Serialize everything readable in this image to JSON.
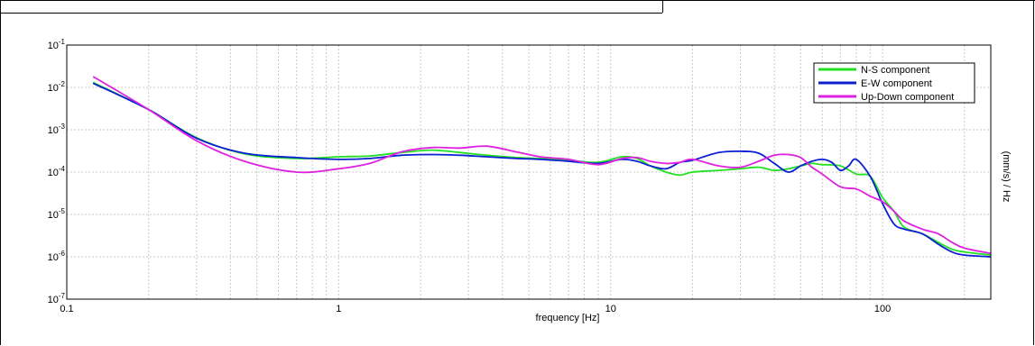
{
  "chart_data": {
    "type": "line",
    "xlabel": "frequency [Hz]",
    "ylabel": "(mm/s)  / Hz",
    "xscale": "log",
    "yscale": "log",
    "xlim": [
      0.1,
      250
    ],
    "ylim": [
      1e-07,
      0.1
    ],
    "grid": true,
    "legend": "top-right",
    "x_ticks": [
      "0.1",
      "1",
      "10",
      "100"
    ],
    "y_ticks": [
      {
        "base": "10",
        "exp": "-7"
      },
      {
        "base": "10",
        "exp": "-6"
      },
      {
        "base": "10",
        "exp": "-5"
      },
      {
        "base": "10",
        "exp": "-4"
      },
      {
        "base": "10",
        "exp": "-3"
      },
      {
        "base": "10",
        "exp": "-2"
      },
      {
        "base": "10",
        "exp": "-1"
      }
    ],
    "series": [
      {
        "name": "N-S component",
        "color": "#22e022",
        "x": [
          0.125,
          0.2,
          0.3,
          0.45,
          0.7,
          1.0,
          1.3,
          1.7,
          2.2,
          2.8,
          3.5,
          4.5,
          5.5,
          7,
          9,
          11,
          12.5,
          14,
          16,
          18,
          20,
          25,
          30,
          35,
          40,
          45,
          50,
          55,
          60,
          70,
          80,
          90,
          100,
          110,
          120,
          140,
          160,
          180,
          200,
          250
        ],
        "y": [
          0.013,
          0.003,
          0.00065,
          0.00027,
          0.00021,
          0.00023,
          0.00024,
          0.00029,
          0.00033,
          0.00029,
          0.00025,
          0.00022,
          0.00021,
          0.00019,
          0.00017,
          0.00023,
          0.00021,
          0.00014,
          0.0001,
          8.5e-05,
          0.0001,
          0.00011,
          0.00012,
          0.00013,
          0.00011,
          0.00012,
          0.00014,
          0.00016,
          0.00015,
          0.00014,
          9e-05,
          8e-05,
          2.5e-05,
          1.2e-05,
          5e-06,
          3.5e-06,
          2.2e-06,
          1.5e-06,
          1.3e-06,
          1.1e-06
        ]
      },
      {
        "name": "E-W component",
        "color": "#0a1ed2",
        "x": [
          0.125,
          0.2,
          0.3,
          0.45,
          0.7,
          1.0,
          1.3,
          1.7,
          2.2,
          2.8,
          3.5,
          4.5,
          5.5,
          7,
          9,
          11,
          12.5,
          14,
          16,
          18,
          20,
          25,
          30,
          35,
          40,
          45,
          50,
          55,
          60,
          65,
          70,
          75,
          80,
          90,
          100,
          110,
          120,
          140,
          160,
          180,
          200,
          250
        ],
        "y": [
          0.0125,
          0.003,
          0.00063,
          0.00028,
          0.00022,
          0.0002,
          0.00021,
          0.00025,
          0.00026,
          0.00025,
          0.00023,
          0.00021,
          0.0002,
          0.00018,
          0.00016,
          0.0002,
          0.00018,
          0.00014,
          0.00012,
          0.00017,
          0.00019,
          0.00029,
          0.00031,
          0.00028,
          0.00016,
          0.0001,
          0.00014,
          0.00018,
          0.0002,
          0.00017,
          0.00011,
          0.00014,
          0.0002,
          8e-05,
          1.8e-05,
          6e-06,
          4.5e-06,
          3.5e-06,
          2e-06,
          1.3e-06,
          1.1e-06,
          1e-06
        ]
      },
      {
        "name": "Up-Down component",
        "color": "#e020e0",
        "x": [
          0.125,
          0.2,
          0.3,
          0.45,
          0.7,
          1.0,
          1.3,
          1.7,
          2.2,
          2.8,
          3.5,
          4.5,
          5.5,
          7,
          9,
          11,
          12.5,
          14,
          16,
          18,
          20,
          25,
          30,
          35,
          40,
          45,
          50,
          55,
          60,
          70,
          80,
          90,
          100,
          110,
          120,
          140,
          160,
          180,
          200,
          250
        ],
        "y": [
          0.018,
          0.003,
          0.00055,
          0.00018,
          0.0001,
          0.00012,
          0.00016,
          0.0003,
          0.00038,
          0.00037,
          0.00041,
          0.0003,
          0.00023,
          0.0002,
          0.00015,
          0.00021,
          0.00022,
          0.00018,
          0.00016,
          0.00017,
          0.0002,
          0.00014,
          0.00013,
          0.00018,
          0.00025,
          0.00026,
          0.00022,
          0.00013,
          9e-05,
          4.5e-05,
          4e-05,
          2.7e-05,
          2e-05,
          1.2e-05,
          7e-06,
          4.5e-06,
          3.5e-06,
          2.2e-06,
          1.6e-06,
          1.2e-06
        ]
      }
    ]
  }
}
